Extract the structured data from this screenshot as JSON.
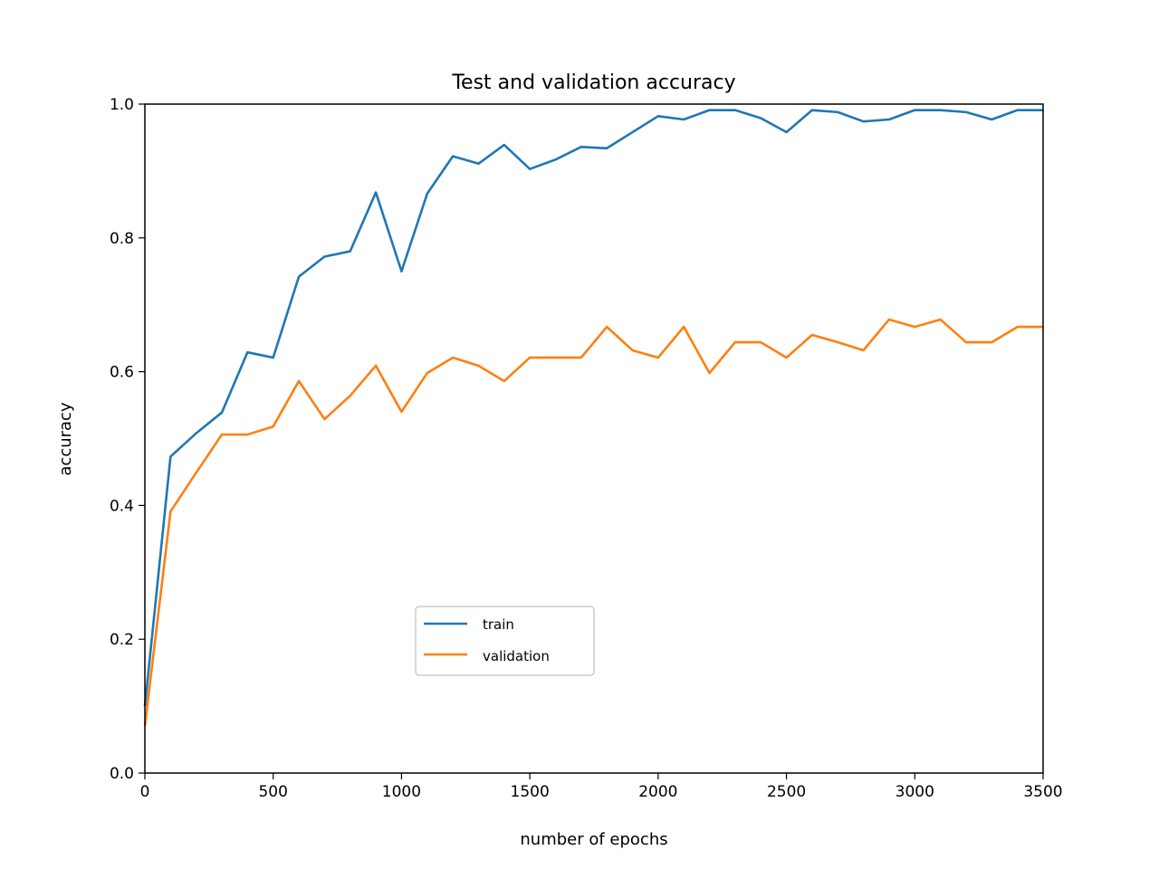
{
  "chart_data": {
    "type": "line",
    "title": "Test and validation accuracy",
    "xlabel": "number of epochs",
    "ylabel": "accuracy",
    "xlim": [
      0,
      3500
    ],
    "ylim": [
      0.0,
      1.0
    ],
    "xticks": [
      0,
      500,
      1000,
      1500,
      2000,
      2500,
      3000,
      3500
    ],
    "xtick_labels": [
      "0",
      "500",
      "1000",
      "1500",
      "2000",
      "2500",
      "3000",
      "3500"
    ],
    "yticks": [
      0.0,
      0.2,
      0.4,
      0.6,
      0.8,
      1.0
    ],
    "ytick_labels": [
      "0.0",
      "0.2",
      "0.4",
      "0.6",
      "0.8",
      "1.0"
    ],
    "grid": false,
    "legend_position": "lower-center",
    "x": [
      0,
      100,
      200,
      300,
      400,
      500,
      600,
      700,
      800,
      900,
      1000,
      1100,
      1200,
      1300,
      1400,
      1500,
      1600,
      1700,
      1800,
      1900,
      2000,
      2100,
      2200,
      2300,
      2400,
      2500,
      2600,
      2700,
      2800,
      2900,
      3000,
      3100,
      3200,
      3300,
      3400,
      3500
    ],
    "series": [
      {
        "name": "train",
        "color": "#1f77b4",
        "values": [
          0.1,
          0.473,
          0.508,
          0.539,
          0.629,
          0.621,
          0.742,
          0.772,
          0.78,
          0.868,
          0.75,
          0.866,
          0.922,
          0.911,
          0.939,
          0.903,
          0.917,
          0.936,
          0.934,
          0.958,
          0.982,
          0.977,
          0.991,
          0.991,
          0.979,
          0.958,
          0.991,
          0.988,
          0.974,
          0.977,
          0.991,
          0.991,
          0.988,
          0.977,
          0.991,
          0.991
        ]
      },
      {
        "name": "validation",
        "color": "#ff7f0e",
        "values": [
          0.07,
          0.391,
          0.449,
          0.506,
          0.506,
          0.518,
          0.586,
          0.529,
          0.564,
          0.609,
          0.54,
          0.598,
          0.621,
          0.609,
          0.586,
          0.621,
          0.621,
          0.621,
          0.667,
          0.632,
          0.621,
          0.667,
          0.598,
          0.644,
          0.644,
          0.621,
          0.655,
          0.644,
          0.632,
          0.678,
          0.667,
          0.678,
          0.644,
          0.644,
          0.667,
          0.667
        ]
      }
    ]
  }
}
